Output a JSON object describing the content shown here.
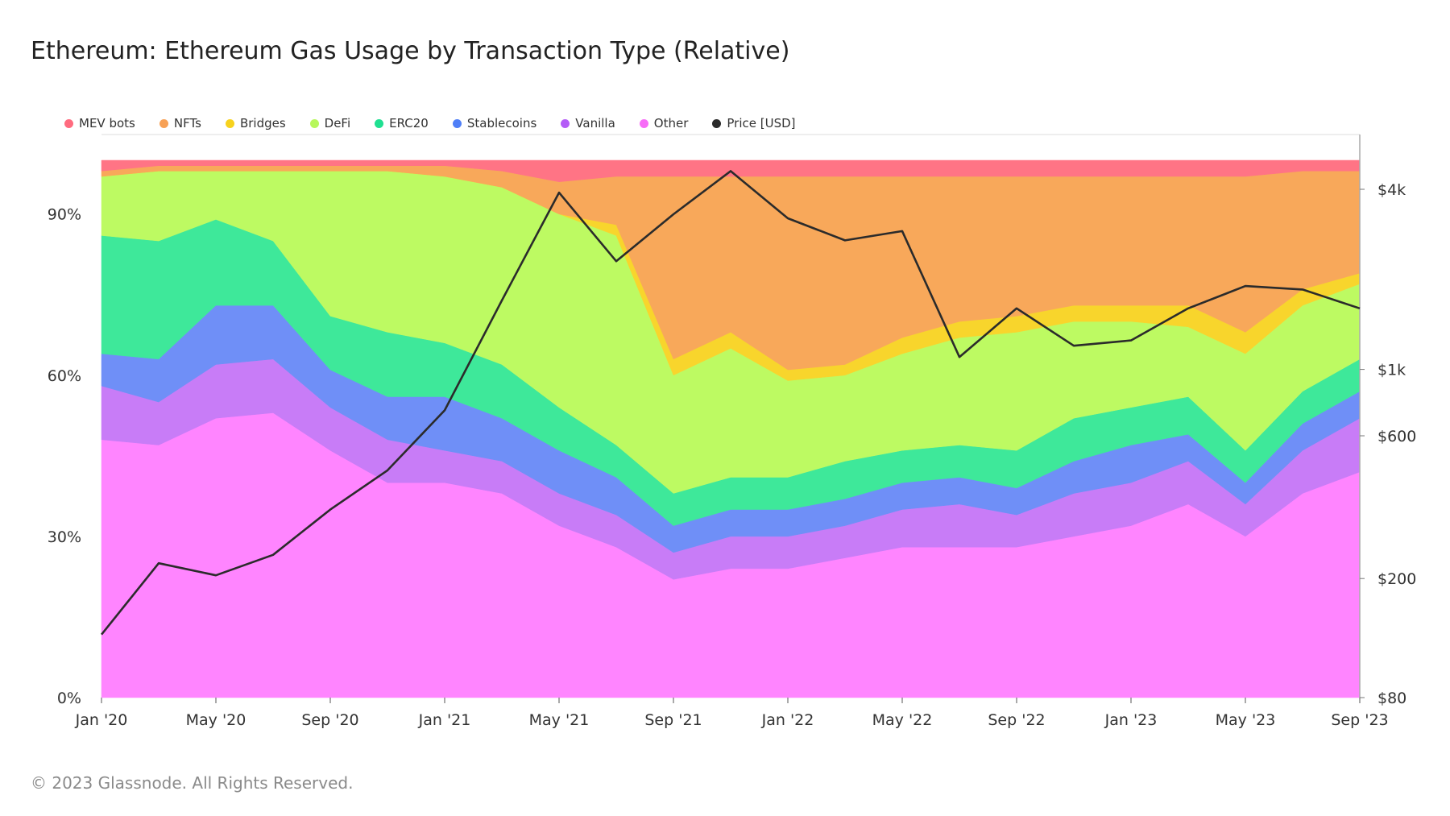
{
  "title": "Ethereum: Ethereum Gas Usage by Transaction Type (Relative)",
  "footer": "© 2023 Glassnode. All Rights Reserved.",
  "legend": [
    {
      "label": "MEV bots",
      "color": "#ff6b7f"
    },
    {
      "label": "NFTs",
      "color": "#f7a156"
    },
    {
      "label": "Bridges",
      "color": "#f7d21e"
    },
    {
      "label": "DeFi",
      "color": "#b7f75c"
    },
    {
      "label": "ERC20",
      "color": "#1fe091"
    },
    {
      "label": "Stablecoins",
      "color": "#4f7ff7"
    },
    {
      "label": "Vanilla",
      "color": "#b45cf7"
    },
    {
      "label": "Other",
      "color": "#f76cf7"
    },
    {
      "label": "Price [USD]",
      "color": "#2b2b2b"
    }
  ],
  "chart_data": {
    "type": "area",
    "stacked": true,
    "normalized": true,
    "x": [
      "Jan '20",
      "Mar '20",
      "May '20",
      "Jul '20",
      "Sep '20",
      "Nov '20",
      "Jan '21",
      "Mar '21",
      "May '21",
      "Jul '21",
      "Sep '21",
      "Nov '21",
      "Jan '22",
      "Mar '22",
      "May '22",
      "Jul '22",
      "Sep '22",
      "Nov '22",
      "Jan '23",
      "Mar '23",
      "May '23",
      "Jul '23",
      "Sep '23"
    ],
    "xticks": [
      "Jan '20",
      "May '20",
      "Sep '20",
      "Jan '21",
      "May '21",
      "Sep '21",
      "Jan '22",
      "May '22",
      "Sep '22",
      "Jan '23",
      "May '23",
      "Sep '23"
    ],
    "yticks_left": [
      "0%",
      "30%",
      "60%",
      "90%"
    ],
    "ylim_left": [
      0,
      100
    ],
    "yticks_right": [
      "$80",
      "$200",
      "$600",
      "$1k",
      "$4k"
    ],
    "right_axis_scale": "log",
    "ylim_right": [
      80,
      5000
    ],
    "series": [
      {
        "name": "Other",
        "color": "#ff85ff",
        "values": [
          48,
          47,
          52,
          53,
          46,
          40,
          40,
          38,
          32,
          28,
          22,
          24,
          24,
          26,
          28,
          28,
          28,
          30,
          32,
          36,
          30,
          38,
          42
        ]
      },
      {
        "name": "Vanilla",
        "color": "#c87cf7",
        "values": [
          10,
          8,
          10,
          10,
          8,
          8,
          6,
          6,
          6,
          6,
          5,
          6,
          6,
          6,
          7,
          8,
          6,
          8,
          8,
          8,
          6,
          8,
          10
        ]
      },
      {
        "name": "Stablecoins",
        "color": "#6f8ff7",
        "values": [
          6,
          8,
          11,
          10,
          7,
          8,
          10,
          8,
          8,
          7,
          5,
          5,
          5,
          5,
          5,
          5,
          5,
          6,
          7,
          5,
          4,
          5,
          5
        ]
      },
      {
        "name": "ERC20",
        "color": "#3ee89a",
        "values": [
          22,
          22,
          16,
          12,
          10,
          12,
          10,
          10,
          8,
          6,
          6,
          6,
          6,
          7,
          6,
          6,
          7,
          8,
          7,
          7,
          6,
          6,
          6
        ]
      },
      {
        "name": "DeFi",
        "color": "#bdfa62",
        "values": [
          11,
          13,
          9,
          13,
          27,
          30,
          31,
          33,
          36,
          39,
          22,
          24,
          18,
          16,
          18,
          20,
          22,
          18,
          16,
          13,
          18,
          16,
          14
        ]
      },
      {
        "name": "Bridges",
        "color": "#f8d52c",
        "values": [
          0,
          0,
          0,
          0,
          0,
          0,
          0,
          0,
          0,
          2,
          3,
          3,
          2,
          2,
          3,
          3,
          3,
          3,
          3,
          4,
          4,
          3,
          2
        ]
      },
      {
        "name": "NFTs",
        "color": "#f8a85a",
        "values": [
          1,
          1,
          1,
          1,
          1,
          1,
          2,
          3,
          6,
          9,
          34,
          29,
          36,
          35,
          30,
          27,
          26,
          24,
          24,
          24,
          29,
          22,
          19
        ]
      },
      {
        "name": "MEV bots",
        "color": "#ff7485",
        "values": [
          2,
          1,
          1,
          1,
          1,
          1,
          1,
          2,
          4,
          3,
          3,
          3,
          3,
          3,
          3,
          3,
          3,
          3,
          3,
          3,
          3,
          2,
          2
        ]
      }
    ],
    "price_series": {
      "name": "Price [USD]",
      "color": "#2b2b2b",
      "values": [
        130,
        225,
        205,
        240,
        340,
        460,
        730,
        1700,
        3900,
        2300,
        3300,
        4600,
        3200,
        2700,
        2900,
        1100,
        1600,
        1200,
        1250,
        1600,
        1900,
        1850,
        1600
      ]
    }
  }
}
